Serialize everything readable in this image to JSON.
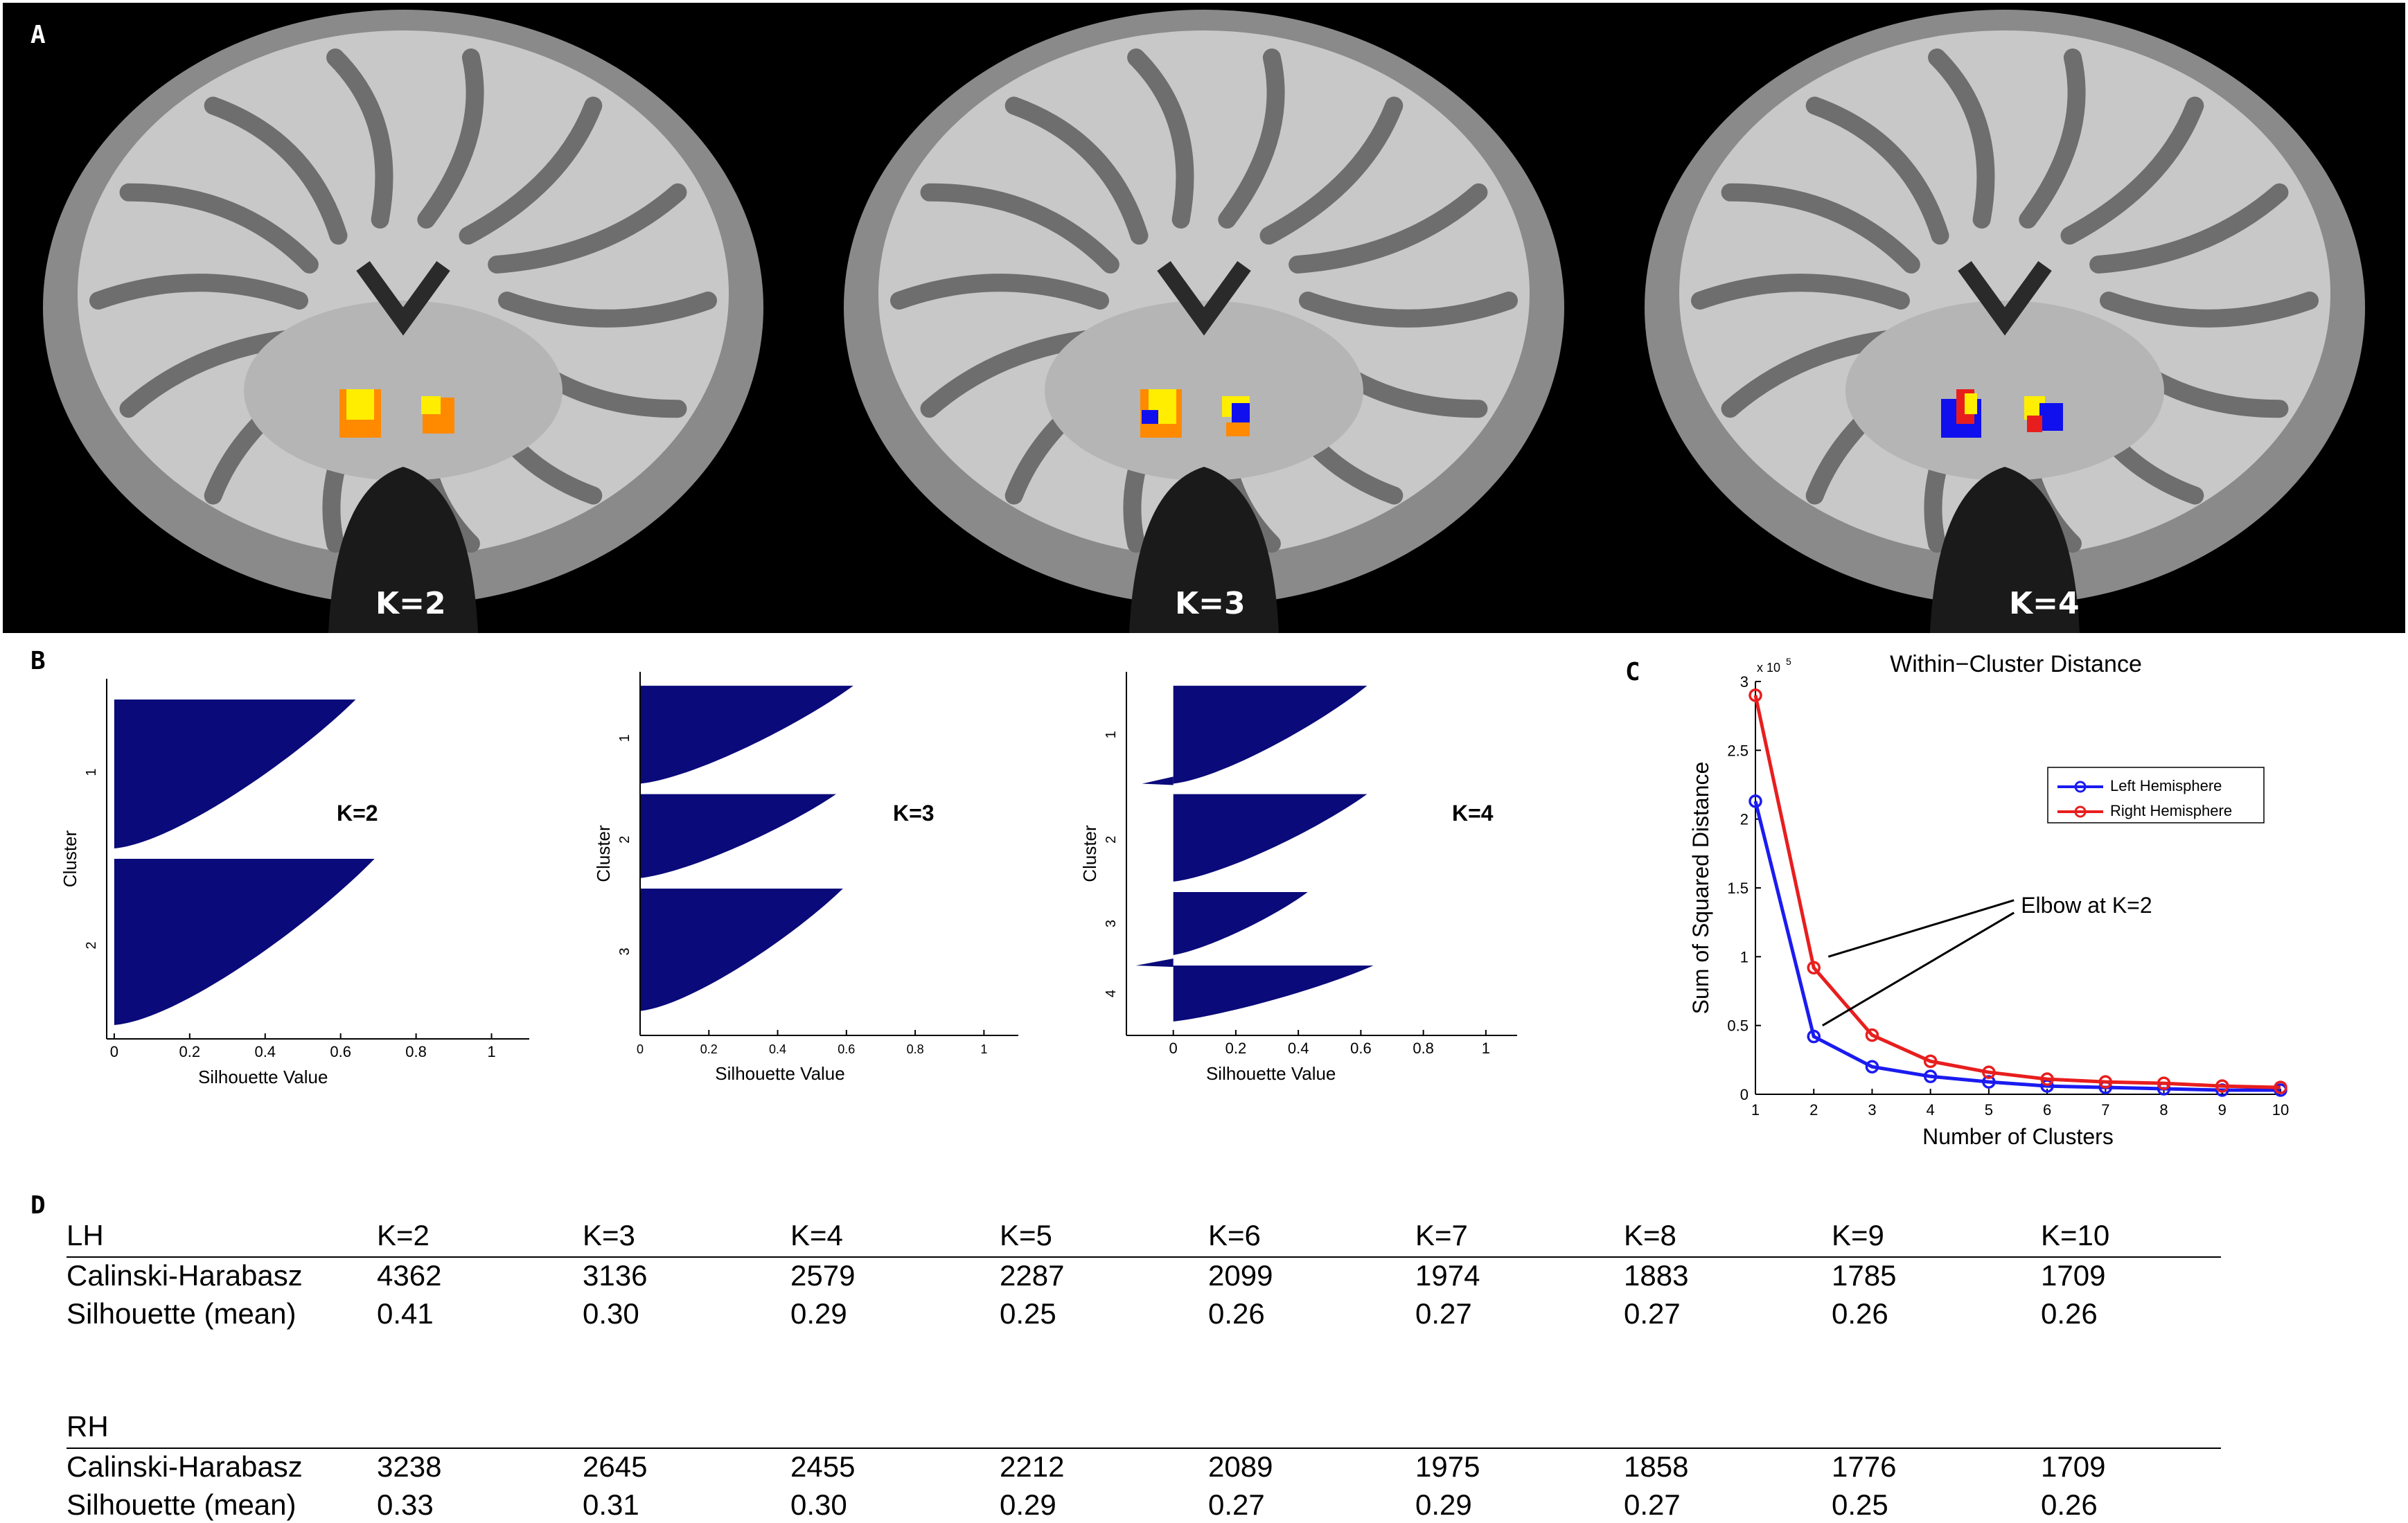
{
  "panels": {
    "a": "A",
    "b": "B",
    "c": "C",
    "d": "D"
  },
  "brains": [
    {
      "label": "K=2"
    },
    {
      "label": "K=3"
    },
    {
      "label": "K=4"
    }
  ],
  "silhouettes": [
    {
      "k_label": "K=2",
      "clusters": [
        "1",
        "2"
      ],
      "ylabel": "Cluster",
      "xlabel": "Silhouette Value",
      "xticks": [
        "0",
        "0.2",
        "0.4",
        "0.6",
        "0.8",
        "1"
      ]
    },
    {
      "k_label": "K=3",
      "clusters": [
        "1",
        "2",
        "3"
      ],
      "ylabel": "Cluster",
      "xlabel": "Silhouette Value",
      "xticks": [
        "0",
        "0.2",
        "0.4",
        "0.6",
        "0.8",
        "1"
      ]
    },
    {
      "k_label": "K=4",
      "clusters": [
        "1",
        "2",
        "3",
        "4"
      ],
      "ylabel": "Cluster",
      "xlabel": "Silhouette Value",
      "xticks": [
        "0",
        "0.2",
        "0.4",
        "0.6",
        "0.8",
        "1"
      ]
    }
  ],
  "colors": {
    "silhouette_fill": "#0a0a7a",
    "left": "#1b1bf0",
    "right": "#e81e1e",
    "brain_bg": "#000000"
  },
  "chart_data": {
    "type": "line",
    "title": "Within−Cluster Distance",
    "xlabel": "Number of Clusters",
    "ylabel": "Sum of Squared Distance",
    "y_multiplier": "x 10",
    "y_exponent": "5",
    "xlim": [
      1,
      10
    ],
    "ylim": [
      0,
      3
    ],
    "xticks": [
      "1",
      "2",
      "3",
      "4",
      "5",
      "6",
      "7",
      "8",
      "9",
      "10"
    ],
    "yticks": [
      "0",
      "0.5",
      "1",
      "1.5",
      "2",
      "2.5",
      "3"
    ],
    "x": [
      1,
      2,
      3,
      4,
      5,
      6,
      7,
      8,
      9,
      10
    ],
    "series": [
      {
        "name": "Left Hemisphere",
        "color": "#1b1bf0",
        "values": [
          2.13,
          0.42,
          0.2,
          0.13,
          0.09,
          0.06,
          0.05,
          0.04,
          0.03,
          0.03
        ]
      },
      {
        "name": "Right Hemisphere",
        "color": "#e81e1e",
        "values": [
          2.9,
          0.92,
          0.43,
          0.24,
          0.16,
          0.11,
          0.09,
          0.08,
          0.06,
          0.05
        ]
      }
    ],
    "annotation": "Elbow at K=2",
    "legend": "right"
  },
  "table": {
    "sections": [
      {
        "name": "LH",
        "headers": [
          "K=2",
          "K=3",
          "K=4",
          "K=5",
          "K=6",
          "K=7",
          "K=8",
          "K=9",
          "K=10"
        ],
        "rows": [
          {
            "label": "Calinski-Harabasz",
            "values": [
              "4362",
              "3136",
              "2579",
              "2287",
              "2099",
              "1974",
              "1883",
              "1785",
              "1709"
            ]
          },
          {
            "label": "Silhouette (mean)",
            "values": [
              "0.41",
              "0.30",
              "0.29",
              "0.25",
              "0.26",
              "0.27",
              "0.27",
              "0.26",
              "0.26"
            ]
          }
        ]
      },
      {
        "name": "RH",
        "headers": [],
        "rows": [
          {
            "label": "Calinski-Harabasz",
            "values": [
              "3238",
              "2645",
              "2455",
              "2212",
              "2089",
              "1975",
              "1858",
              "1776",
              "1709"
            ]
          },
          {
            "label": "Silhouette (mean)",
            "values": [
              "0.33",
              "0.31",
              "0.30",
              "0.29",
              "0.27",
              "0.29",
              "0.27",
              "0.25",
              "0.26"
            ]
          }
        ]
      }
    ]
  }
}
